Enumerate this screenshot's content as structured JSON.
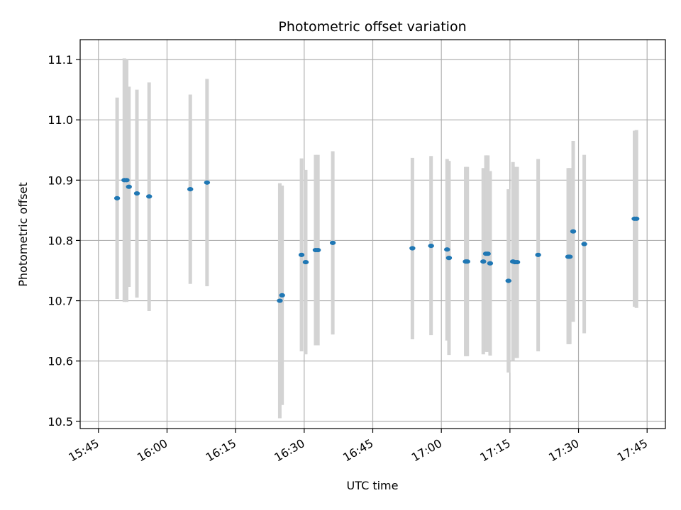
{
  "chart_data": {
    "type": "scatter",
    "title": "Photometric offset variation",
    "xlabel": "UTC time",
    "ylabel": "Photometric offset",
    "xlim": [
      "15:41",
      "17:49"
    ],
    "ylim": [
      10.488,
      11.133
    ],
    "grid": true,
    "colors": {
      "point": "#1f77b4",
      "errorbar": "#d3d3d3",
      "grid": "#b0b0b0"
    },
    "x_ticks": [
      "15:45",
      "16:00",
      "16:15",
      "16:30",
      "16:45",
      "17:00",
      "17:15",
      "17:30",
      "17:45"
    ],
    "y_ticks": [
      10.5,
      10.6,
      10.7,
      10.8,
      10.9,
      11.0,
      11.1
    ],
    "points": [
      {
        "t": "15:49:05",
        "y": 10.87,
        "lo": 10.703,
        "hi": 11.037
      },
      {
        "t": "15:50:40",
        "y": 10.9,
        "lo": 10.698,
        "hi": 11.102
      },
      {
        "t": "15:51:10",
        "y": 10.9,
        "lo": 10.698,
        "hi": 11.1
      },
      {
        "t": "15:51:40",
        "y": 10.889,
        "lo": 10.723,
        "hi": 11.055
      },
      {
        "t": "15:53:25",
        "y": 10.878,
        "lo": 10.705,
        "hi": 11.05
      },
      {
        "t": "15:56:05",
        "y": 10.873,
        "lo": 10.683,
        "hi": 11.062
      },
      {
        "t": "16:05:05",
        "y": 10.885,
        "lo": 10.728,
        "hi": 11.042
      },
      {
        "t": "16:08:45",
        "y": 10.896,
        "lo": 10.724,
        "hi": 11.068
      },
      {
        "t": "16:24:40",
        "y": 10.7,
        "lo": 10.505,
        "hi": 10.895
      },
      {
        "t": "16:25:10",
        "y": 10.709,
        "lo": 10.527,
        "hi": 10.891
      },
      {
        "t": "16:29:25",
        "y": 10.776,
        "lo": 10.616,
        "hi": 10.936
      },
      {
        "t": "16:30:20",
        "y": 10.764,
        "lo": 10.611,
        "hi": 10.917
      },
      {
        "t": "16:32:30",
        "y": 10.784,
        "lo": 10.626,
        "hi": 10.942
      },
      {
        "t": "16:33:00",
        "y": 10.784,
        "lo": 10.626,
        "hi": 10.942
      },
      {
        "t": "16:36:15",
        "y": 10.796,
        "lo": 10.644,
        "hi": 10.948
      },
      {
        "t": "16:53:40",
        "y": 10.787,
        "lo": 10.636,
        "hi": 10.937
      },
      {
        "t": "16:57:45",
        "y": 10.791,
        "lo": 10.643,
        "hi": 10.94
      },
      {
        "t": "17:01:15",
        "y": 10.785,
        "lo": 10.634,
        "hi": 10.935
      },
      {
        "t": "17:01:40",
        "y": 10.771,
        "lo": 10.61,
        "hi": 10.932
      },
      {
        "t": "17:05:20",
        "y": 10.765,
        "lo": 10.608,
        "hi": 10.922
      },
      {
        "t": "17:05:40",
        "y": 10.765,
        "lo": 10.608,
        "hi": 10.922
      },
      {
        "t": "17:09:10",
        "y": 10.765,
        "lo": 10.611,
        "hi": 10.92
      },
      {
        "t": "17:09:45",
        "y": 10.778,
        "lo": 10.615,
        "hi": 10.941
      },
      {
        "t": "17:10:10",
        "y": 10.778,
        "lo": 10.615,
        "hi": 10.941
      },
      {
        "t": "17:10:40",
        "y": 10.762,
        "lo": 10.609,
        "hi": 10.915
      },
      {
        "t": "17:14:40",
        "y": 10.733,
        "lo": 10.581,
        "hi": 10.885
      },
      {
        "t": "17:15:40",
        "y": 10.765,
        "lo": 10.6,
        "hi": 10.93
      },
      {
        "t": "17:16:05",
        "y": 10.764,
        "lo": 10.605,
        "hi": 10.922
      },
      {
        "t": "17:16:35",
        "y": 10.764,
        "lo": 10.605,
        "hi": 10.922
      },
      {
        "t": "17:21:10",
        "y": 10.776,
        "lo": 10.616,
        "hi": 10.935
      },
      {
        "t": "17:27:45",
        "y": 10.773,
        "lo": 10.628,
        "hi": 10.92
      },
      {
        "t": "17:28:05",
        "y": 10.773,
        "lo": 10.628,
        "hi": 10.92
      },
      {
        "t": "17:28:50",
        "y": 10.815,
        "lo": 10.665,
        "hi": 10.965
      },
      {
        "t": "17:31:15",
        "y": 10.794,
        "lo": 10.646,
        "hi": 10.942
      },
      {
        "t": "17:42:15",
        "y": 10.836,
        "lo": 10.69,
        "hi": 10.982
      },
      {
        "t": "17:42:40",
        "y": 10.836,
        "lo": 10.688,
        "hi": 10.983
      }
    ]
  }
}
